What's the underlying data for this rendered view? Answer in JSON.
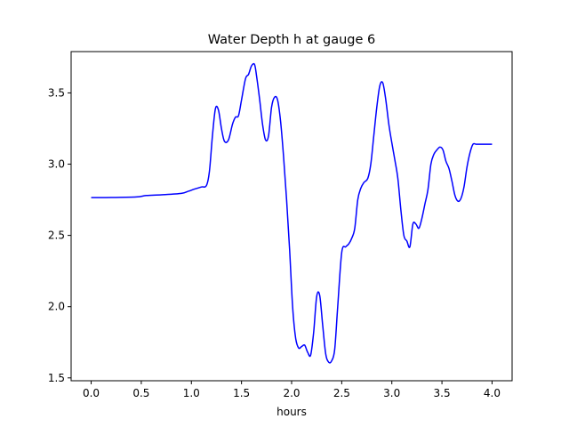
{
  "chart_data": {
    "type": "line",
    "title": "Water Depth h at gauge 6",
    "xlabel": "hours",
    "ylabel": "",
    "xlim": [
      -0.2,
      4.2
    ],
    "ylim": [
      1.48,
      3.79
    ],
    "xticks": [
      0.0,
      0.5,
      1.0,
      1.5,
      2.0,
      2.5,
      3.0,
      3.5,
      4.0
    ],
    "xtick_labels": [
      "0.0",
      "0.5",
      "1.0",
      "1.5",
      "2.0",
      "2.5",
      "3.0",
      "3.5",
      "4.0"
    ],
    "yticks": [
      1.5,
      2.0,
      2.5,
      3.0,
      3.5
    ],
    "ytick_labels": [
      "1.5",
      "2.0",
      "2.5",
      "3.0",
      "3.5"
    ],
    "grid": false,
    "legend": "none",
    "series": [
      {
        "color": "#0000ff",
        "x": [
          0.0,
          0.2,
          0.45,
          0.55,
          0.7,
          0.9,
          0.97,
          1.03,
          1.1,
          1.15,
          1.18,
          1.21,
          1.24,
          1.27,
          1.3,
          1.33,
          1.37,
          1.41,
          1.44,
          1.47,
          1.5,
          1.54,
          1.57,
          1.6,
          1.63,
          1.65,
          1.68,
          1.71,
          1.74,
          1.77,
          1.8,
          1.83,
          1.86,
          1.89,
          1.92,
          1.95,
          1.98,
          2.01,
          2.04,
          2.07,
          2.1,
          2.13,
          2.16,
          2.19,
          2.22,
          2.25,
          2.28,
          2.31,
          2.34,
          2.37,
          2.4,
          2.43,
          2.46,
          2.5,
          2.54,
          2.57,
          2.6,
          2.63,
          2.66,
          2.69,
          2.72,
          2.76,
          2.79,
          2.82,
          2.85,
          2.88,
          2.91,
          2.94,
          2.97,
          3.0,
          3.03,
          3.06,
          3.09,
          3.12,
          3.15,
          3.18,
          3.21,
          3.24,
          3.27,
          3.3,
          3.33,
          3.36,
          3.39,
          3.42,
          3.45,
          3.48,
          3.51,
          3.54,
          3.57,
          3.6,
          3.63,
          3.66,
          3.69,
          3.72,
          3.75,
          3.78,
          3.81,
          3.84,
          3.87,
          3.9,
          3.93,
          3.96,
          4.0
        ],
        "y": [
          2.765,
          2.766,
          2.77,
          2.78,
          2.785,
          2.795,
          2.81,
          2.825,
          2.84,
          2.85,
          2.95,
          3.2,
          3.39,
          3.38,
          3.25,
          3.16,
          3.17,
          3.28,
          3.33,
          3.34,
          3.45,
          3.6,
          3.63,
          3.69,
          3.7,
          3.62,
          3.46,
          3.28,
          3.17,
          3.2,
          3.4,
          3.47,
          3.45,
          3.3,
          3.05,
          2.75,
          2.4,
          2.0,
          1.78,
          1.71,
          1.72,
          1.73,
          1.68,
          1.66,
          1.82,
          2.07,
          2.08,
          1.87,
          1.67,
          1.61,
          1.62,
          1.7,
          2.0,
          2.38,
          2.42,
          2.44,
          2.48,
          2.55,
          2.75,
          2.83,
          2.87,
          2.9,
          3.0,
          3.2,
          3.4,
          3.55,
          3.57,
          3.45,
          3.28,
          3.15,
          3.03,
          2.9,
          2.68,
          2.5,
          2.46,
          2.42,
          2.58,
          2.58,
          2.55,
          2.62,
          2.72,
          2.82,
          3.0,
          3.07,
          3.1,
          3.12,
          3.1,
          3.02,
          2.97,
          2.88,
          2.78,
          2.74,
          2.76,
          2.84,
          2.98,
          3.08,
          3.14,
          3.14,
          3.14,
          3.14,
          3.14,
          3.14,
          3.14
        ]
      }
    ]
  }
}
